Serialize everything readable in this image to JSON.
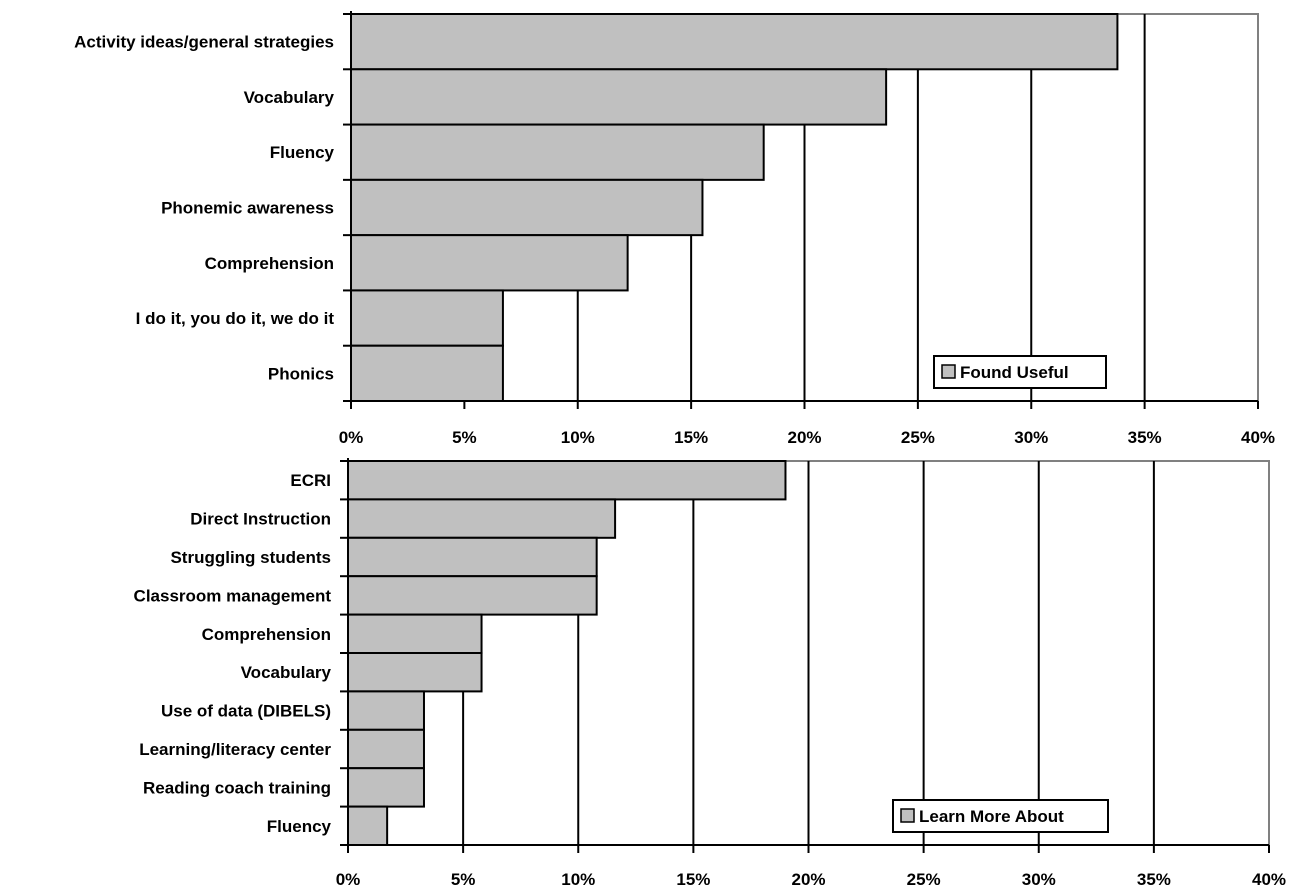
{
  "chart_data": [
    {
      "type": "bar",
      "orientation": "horizontal",
      "categories": [
        "Activity ideas/general strategies",
        "Vocabulary",
        "Fluency",
        "Phonemic awareness",
        "Comprehension",
        "I do it, you do it, we do it",
        "Phonics"
      ],
      "series": [
        {
          "name": "Found Useful",
          "values": [
            33.8,
            23.6,
            18.2,
            15.5,
            12.2,
            6.7,
            6.7
          ]
        }
      ],
      "xlim": [
        0,
        40
      ],
      "xticks": [
        "0%",
        "5%",
        "10%",
        "15%",
        "20%",
        "25%",
        "30%",
        "35%",
        "40%"
      ],
      "grid": "vertical",
      "legend_position": "bottom-right",
      "bar_color": "#c0c0c0"
    },
    {
      "type": "bar",
      "orientation": "horizontal",
      "categories": [
        "ECRI",
        "Direct Instruction",
        "Struggling students",
        "Classroom management",
        "Comprehension",
        "Vocabulary",
        "Use of data (DIBELS)",
        "Learning/literacy center",
        "Reading coach training",
        "Fluency"
      ],
      "series": [
        {
          "name": "Learn More About",
          "values": [
            19.0,
            11.6,
            10.8,
            10.8,
            5.8,
            5.8,
            3.3,
            3.3,
            3.3,
            1.7
          ]
        }
      ],
      "xlim": [
        0,
        40
      ],
      "xticks": [
        "0%",
        "5%",
        "10%",
        "15%",
        "20%",
        "25%",
        "30%",
        "35%",
        "40%"
      ],
      "grid": "vertical",
      "legend_position": "bottom-right",
      "bar_color": "#c0c0c0"
    }
  ]
}
